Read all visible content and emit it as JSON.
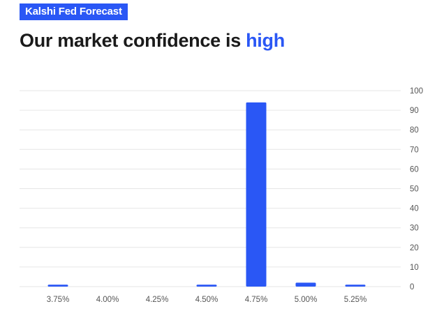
{
  "badge": "Kalshi Fed Forecast",
  "headline": {
    "prefix": "Our market confidence is ",
    "accent": "high"
  },
  "colors": {
    "accent": "#2a57f5",
    "grid": "#e6e6e6",
    "text": "#1a1a1a"
  },
  "chart_data": {
    "type": "bar",
    "categories": [
      "3.75%",
      "4.00%",
      "4.25%",
      "4.50%",
      "4.75%",
      "5.00%",
      "5.25%"
    ],
    "values": [
      1,
      0,
      0,
      1,
      94,
      2,
      1
    ],
    "ylim": [
      0,
      100
    ],
    "yticks": [
      0,
      10,
      20,
      30,
      40,
      50,
      60,
      70,
      80,
      90,
      100
    ],
    "yaxis_position": "right",
    "grid": true,
    "title": "",
    "xlabel": "",
    "ylabel": ""
  }
}
